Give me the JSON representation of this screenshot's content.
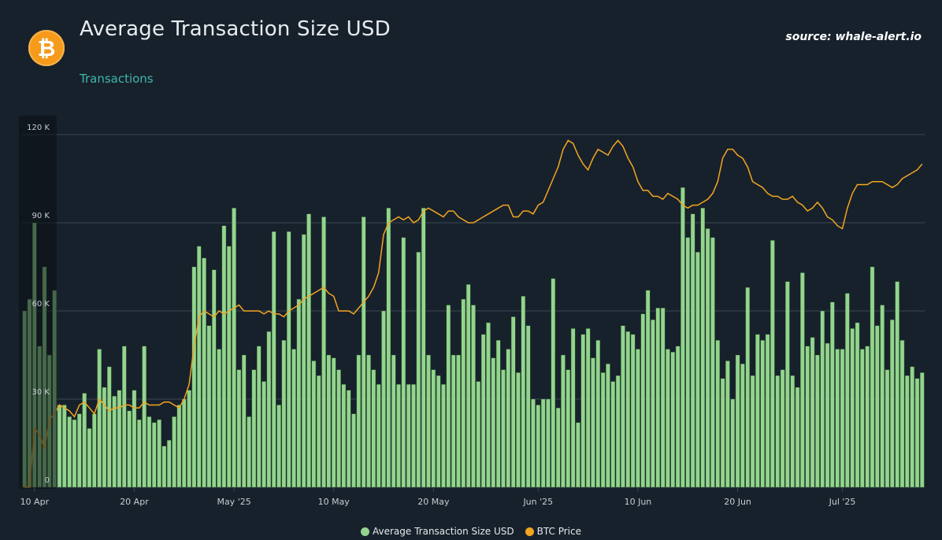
{
  "header": {
    "title": "Average Transaction Size USD",
    "subtitle": "Transactions",
    "source": "source: whale-alert.io",
    "logo_symbol": "₿"
  },
  "colors": {
    "background": "#17212b",
    "bar": "#93d48e",
    "bar_edge": "#2e5a2e",
    "line": "#f3a521",
    "grid": "#3b4650",
    "tick": "#c7cdd2"
  },
  "chart_data": {
    "type": "bar",
    "title": "Average Transaction Size USD",
    "xlabel": "",
    "ylabel": "",
    "ylim": [
      0,
      120000
    ],
    "y_ticks": [
      "0",
      "30 K",
      "60 K",
      "90 K",
      "120 K"
    ],
    "x_ticks": [
      "10 Apr",
      "20 Apr",
      "May '25",
      "10 May",
      "20 May",
      "Jun '25",
      "10 Jun",
      "20 Jun",
      "Jul '25"
    ],
    "grid": true,
    "legend_position": "bottom-center",
    "n_points": 181,
    "series": [
      {
        "name": "Average Transaction Size USD",
        "kind": "bar",
        "values": [
          60000,
          64000,
          90000,
          48000,
          75000,
          45000,
          67000,
          28000,
          28000,
          24000,
          23000,
          25000,
          32000,
          20000,
          25000,
          47000,
          34000,
          41000,
          31000,
          33000,
          48000,
          26000,
          33000,
          23000,
          48000,
          24000,
          22000,
          23000,
          14000,
          16000,
          24000,
          28000,
          30000,
          33000,
          75000,
          82000,
          78000,
          55000,
          74000,
          47000,
          89000,
          82000,
          95000,
          40000,
          45000,
          24000,
          40000,
          48000,
          36000,
          53000,
          87000,
          28000,
          50000,
          87000,
          47000,
          64000,
          86000,
          93000,
          43000,
          38000,
          92000,
          45000,
          44000,
          40000,
          35000,
          33000,
          25000,
          45000,
          92000,
          45000,
          40000,
          35000,
          60000,
          95000,
          45000,
          35000,
          85000,
          35000,
          35000,
          80000,
          95000,
          45000,
          40000,
          38000,
          35000,
          62000,
          45000,
          45000,
          64000,
          69000,
          62000,
          36000,
          52000,
          56000,
          44000,
          50000,
          40000,
          47000,
          58000,
          39000,
          65000,
          55000,
          30000,
          28000,
          30000,
          30000,
          71000,
          27000,
          45000,
          40000,
          54000,
          22000,
          52000,
          54000,
          44000,
          50000,
          39000,
          42000,
          36000,
          38000,
          55000,
          53000,
          52000,
          47000,
          59000,
          67000,
          57000,
          61000,
          61000,
          47000,
          46000,
          48000,
          102000,
          85000,
          93000,
          80000,
          95000,
          88000,
          85000,
          50000,
          37000,
          43000,
          30000,
          45000,
          42000,
          68000,
          38000,
          52000,
          50000,
          52000,
          84000,
          38000,
          40000,
          70000,
          38000,
          34000,
          73000,
          48000,
          51000,
          45000,
          60000,
          49000,
          63000,
          47000,
          47000,
          66000,
          54000,
          56000,
          47000,
          48000,
          75000,
          55000,
          62000,
          40000,
          57000,
          70000,
          50000,
          38000,
          41000,
          37000,
          39000
        ]
      },
      {
        "name": "BTC Price",
        "kind": "line",
        "values": [
          0,
          0,
          20000,
          18000,
          13000,
          23000,
          25000,
          28000,
          27000,
          26000,
          24000,
          28000,
          29000,
          27000,
          25000,
          30000,
          28000,
          26000,
          27000,
          27000,
          28000,
          28000,
          27000,
          27000,
          29000,
          28000,
          28000,
          28000,
          29000,
          29000,
          28000,
          27000,
          30000,
          35000,
          48000,
          58000,
          60000,
          59000,
          58000,
          60000,
          59000,
          60000,
          61000,
          62000,
          60000,
          60000,
          60000,
          60000,
          59000,
          60000,
          59000,
          59000,
          58000,
          60000,
          61000,
          62000,
          64000,
          65000,
          66000,
          67000,
          68000,
          66000,
          65000,
          60000,
          60000,
          60000,
          59000,
          61000,
          63000,
          65000,
          68000,
          73000,
          86000,
          90000,
          91000,
          92000,
          91000,
          92000,
          90000,
          91000,
          94000,
          95000,
          94000,
          93000,
          92000,
          94000,
          94000,
          92000,
          91000,
          90000,
          90000,
          91000,
          92000,
          93000,
          94000,
          95000,
          96000,
          96000,
          92000,
          92000,
          94000,
          94000,
          93000,
          96000,
          97000,
          101000,
          105000,
          109000,
          115000,
          118000,
          117000,
          113000,
          110000,
          108000,
          112000,
          115000,
          114000,
          113000,
          116000,
          118000,
          116000,
          112000,
          109000,
          104000,
          101000,
          101000,
          99000,
          99000,
          98000,
          100000,
          99000,
          98000,
          96000,
          95000,
          96000,
          96000,
          97000,
          98000,
          100000,
          104000,
          112000,
          115000,
          115000,
          113000,
          112000,
          109000,
          104000,
          103000,
          102000,
          100000,
          99000,
          99000,
          98000,
          98000,
          99000,
          97000,
          96000,
          94000,
          95000,
          97000,
          95000,
          92000,
          91000,
          89000,
          88000,
          95000,
          100000,
          103000,
          103000,
          103000,
          104000,
          104000,
          104000,
          103000,
          102000,
          103000,
          105000,
          106000,
          107000,
          108000,
          110000
        ]
      }
    ]
  },
  "legend": {
    "bar_label": "Average Transaction Size USD",
    "line_label": "BTC Price"
  }
}
